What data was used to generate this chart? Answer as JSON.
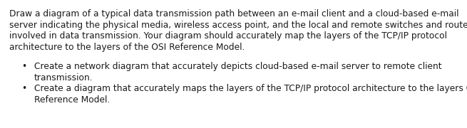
{
  "background_color": "#ffffff",
  "paragraph_lines": [
    "Draw a diagram of a typical data transmission path between an e-mail client and a cloud-based e-mail",
    "server indicating the physical media, wireless access point, and the local and remote switches and routers",
    "involved in data transmission. Your diagram should accurately map the layers of the TCP/IP protocol",
    "architecture to the layers of the OSI Reference Model."
  ],
  "bullet1_lines": [
    "Create a network diagram that accurately depicts cloud-based e-mail server to remote client",
    "transmission."
  ],
  "bullet2_lines": [
    "Create a diagram that accurately maps the layers of the TCP/IP protocol architecture to the layers OSI",
    "Reference Model."
  ],
  "font_family": "DejaVu Sans",
  "font_size_body": 8.8,
  "text_color": "#1a1a1a",
  "bullet_char": "•",
  "background_color2": "#ffffff"
}
